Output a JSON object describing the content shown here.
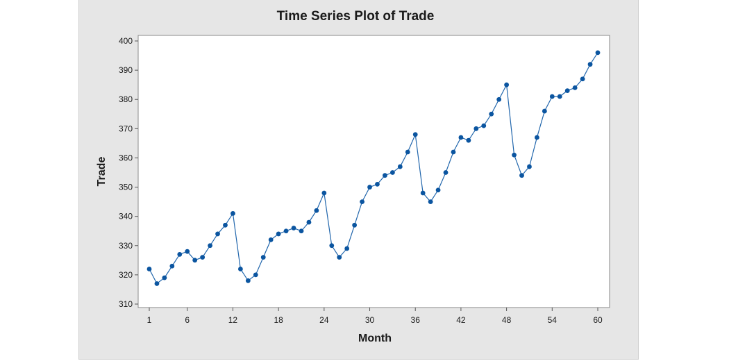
{
  "chart_data": {
    "type": "line",
    "title": "Time Series Plot of Trade",
    "xlabel": "Month",
    "ylabel": "Trade",
    "xlim": [
      1,
      60
    ],
    "ylim": [
      310,
      400
    ],
    "x_ticks": [
      1,
      6,
      12,
      18,
      24,
      30,
      36,
      42,
      48,
      54,
      60
    ],
    "y_ticks": [
      310,
      320,
      330,
      340,
      350,
      360,
      370,
      380,
      390,
      400
    ],
    "grid": false,
    "marker": "circle",
    "line_color": "#2166ac",
    "marker_color": "#0b55a0",
    "background_color": "#e6e6e6",
    "plot_background_color": "#ffffff",
    "series": [
      {
        "x": [
          1,
          2,
          3,
          4,
          5,
          6,
          7,
          8,
          9,
          10,
          11,
          12,
          13,
          14,
          15,
          16,
          17,
          18,
          19,
          20,
          21,
          22,
          23,
          24,
          25,
          26,
          27,
          28,
          29,
          30,
          31,
          32,
          33,
          34,
          35,
          36,
          37,
          38,
          39,
          40,
          41,
          42,
          43,
          44,
          45,
          46,
          47,
          48,
          49,
          50,
          51,
          52,
          53,
          54,
          55,
          56,
          57,
          58,
          59,
          60
        ],
        "values": [
          322,
          317,
          319,
          323,
          327,
          328,
          325,
          326,
          330,
          334,
          337,
          341,
          322,
          318,
          320,
          326,
          332,
          334,
          335,
          336,
          335,
          338,
          342,
          348,
          330,
          326,
          329,
          337,
          345,
          350,
          351,
          354,
          355,
          357,
          362,
          368,
          348,
          345,
          349,
          355,
          362,
          367,
          366,
          370,
          371,
          375,
          380,
          385,
          361,
          354,
          357,
          367,
          376,
          381,
          381,
          383,
          384,
          387,
          392,
          396
        ]
      }
    ]
  }
}
